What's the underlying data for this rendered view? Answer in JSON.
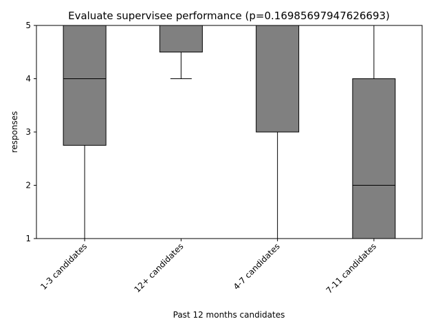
{
  "chart_data": {
    "type": "box",
    "title": "Evaluate supervisee performance (p=0.16985697947626693)",
    "xlabel": "Past 12 months candidates",
    "ylabel": "responses",
    "ylim": [
      1,
      5
    ],
    "yticks": [
      1,
      2,
      3,
      4,
      5
    ],
    "grid": false,
    "box_color": "#808080",
    "line_color": "#000000",
    "categories": [
      "1-3 candidates",
      "12+ candidates",
      "4-7 candidates",
      "7-11 candidates"
    ],
    "boxes": [
      {
        "whisker_low": 1,
        "q1": 2.75,
        "median": 4,
        "q3": 5,
        "whisker_high": 5
      },
      {
        "whisker_low": 4,
        "q1": 4.5,
        "median": 5,
        "q3": 5,
        "whisker_high": 5
      },
      {
        "whisker_low": 1,
        "q1": 3,
        "median": 5,
        "q3": 5,
        "whisker_high": 5
      },
      {
        "whisker_low": 1,
        "q1": 1,
        "median": 2,
        "q3": 4,
        "whisker_high": 5
      }
    ]
  }
}
